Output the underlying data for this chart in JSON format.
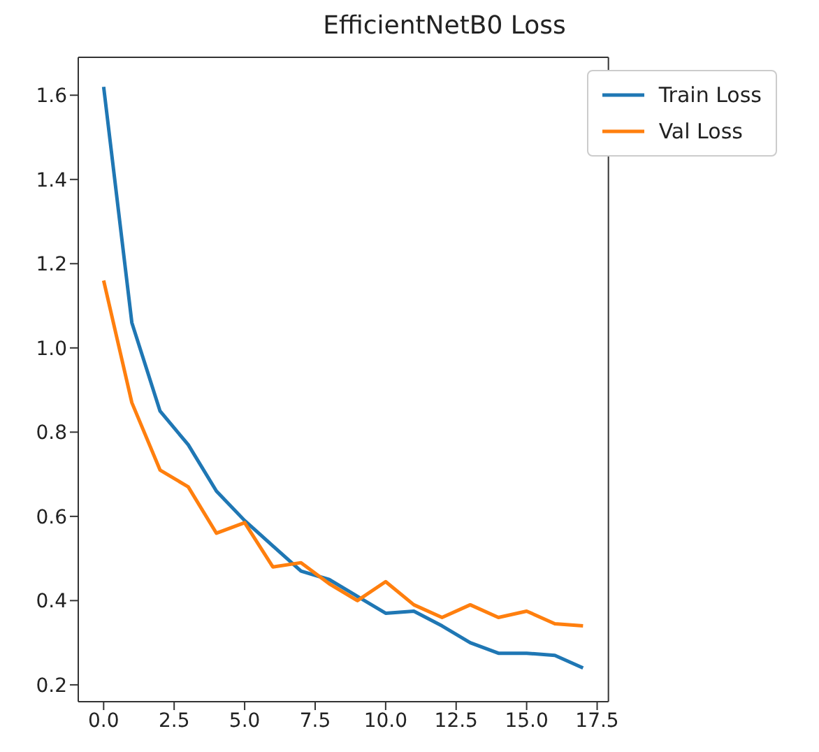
{
  "chart_data": {
    "type": "line",
    "title": "EfficientNetB0 Loss",
    "x": [
      0,
      1,
      2,
      3,
      4,
      5,
      6,
      7,
      8,
      9,
      10,
      11,
      12,
      13,
      14,
      15,
      16,
      17
    ],
    "series": [
      {
        "name": "Train Loss",
        "color": "#1f77b4",
        "values": [
          1.62,
          1.06,
          0.85,
          0.77,
          0.66,
          0.59,
          0.53,
          0.47,
          0.45,
          0.41,
          0.37,
          0.375,
          0.34,
          0.3,
          0.275,
          0.275,
          0.27,
          0.24
        ]
      },
      {
        "name": "Val Loss",
        "color": "#ff7f0e",
        "values": [
          1.16,
          0.87,
          0.71,
          0.67,
          0.56,
          0.585,
          0.48,
          0.49,
          0.44,
          0.4,
          0.445,
          0.39,
          0.36,
          0.39,
          0.36,
          0.375,
          0.345,
          0.34
        ]
      }
    ],
    "xlim": [
      -0.9,
      17.9
    ],
    "xticks": [
      {
        "value": 0,
        "label": "0.0"
      },
      {
        "value": 2.5,
        "label": "2.5"
      },
      {
        "value": 5,
        "label": "5.0"
      },
      {
        "value": 7.5,
        "label": "7.5"
      },
      {
        "value": 10,
        "label": "10.0"
      },
      {
        "value": 12.5,
        "label": "12.5"
      },
      {
        "value": 15,
        "label": "15.0"
      },
      {
        "value": 17.5,
        "label": "17.5"
      }
    ],
    "ylim": [
      0.16,
      1.69
    ],
    "yticks": [
      {
        "value": 0.2,
        "label": "0.2"
      },
      {
        "value": 0.4,
        "label": "0.4"
      },
      {
        "value": 0.6,
        "label": "0.6"
      },
      {
        "value": 0.8,
        "label": "0.8"
      },
      {
        "value": 1.0,
        "label": "1.0"
      },
      {
        "value": 1.2,
        "label": "1.2"
      },
      {
        "value": 1.4,
        "label": "1.4"
      },
      {
        "value": 1.6,
        "label": "1.6"
      }
    ],
    "legend": "top right",
    "marker": "none",
    "line_style": "solid"
  }
}
